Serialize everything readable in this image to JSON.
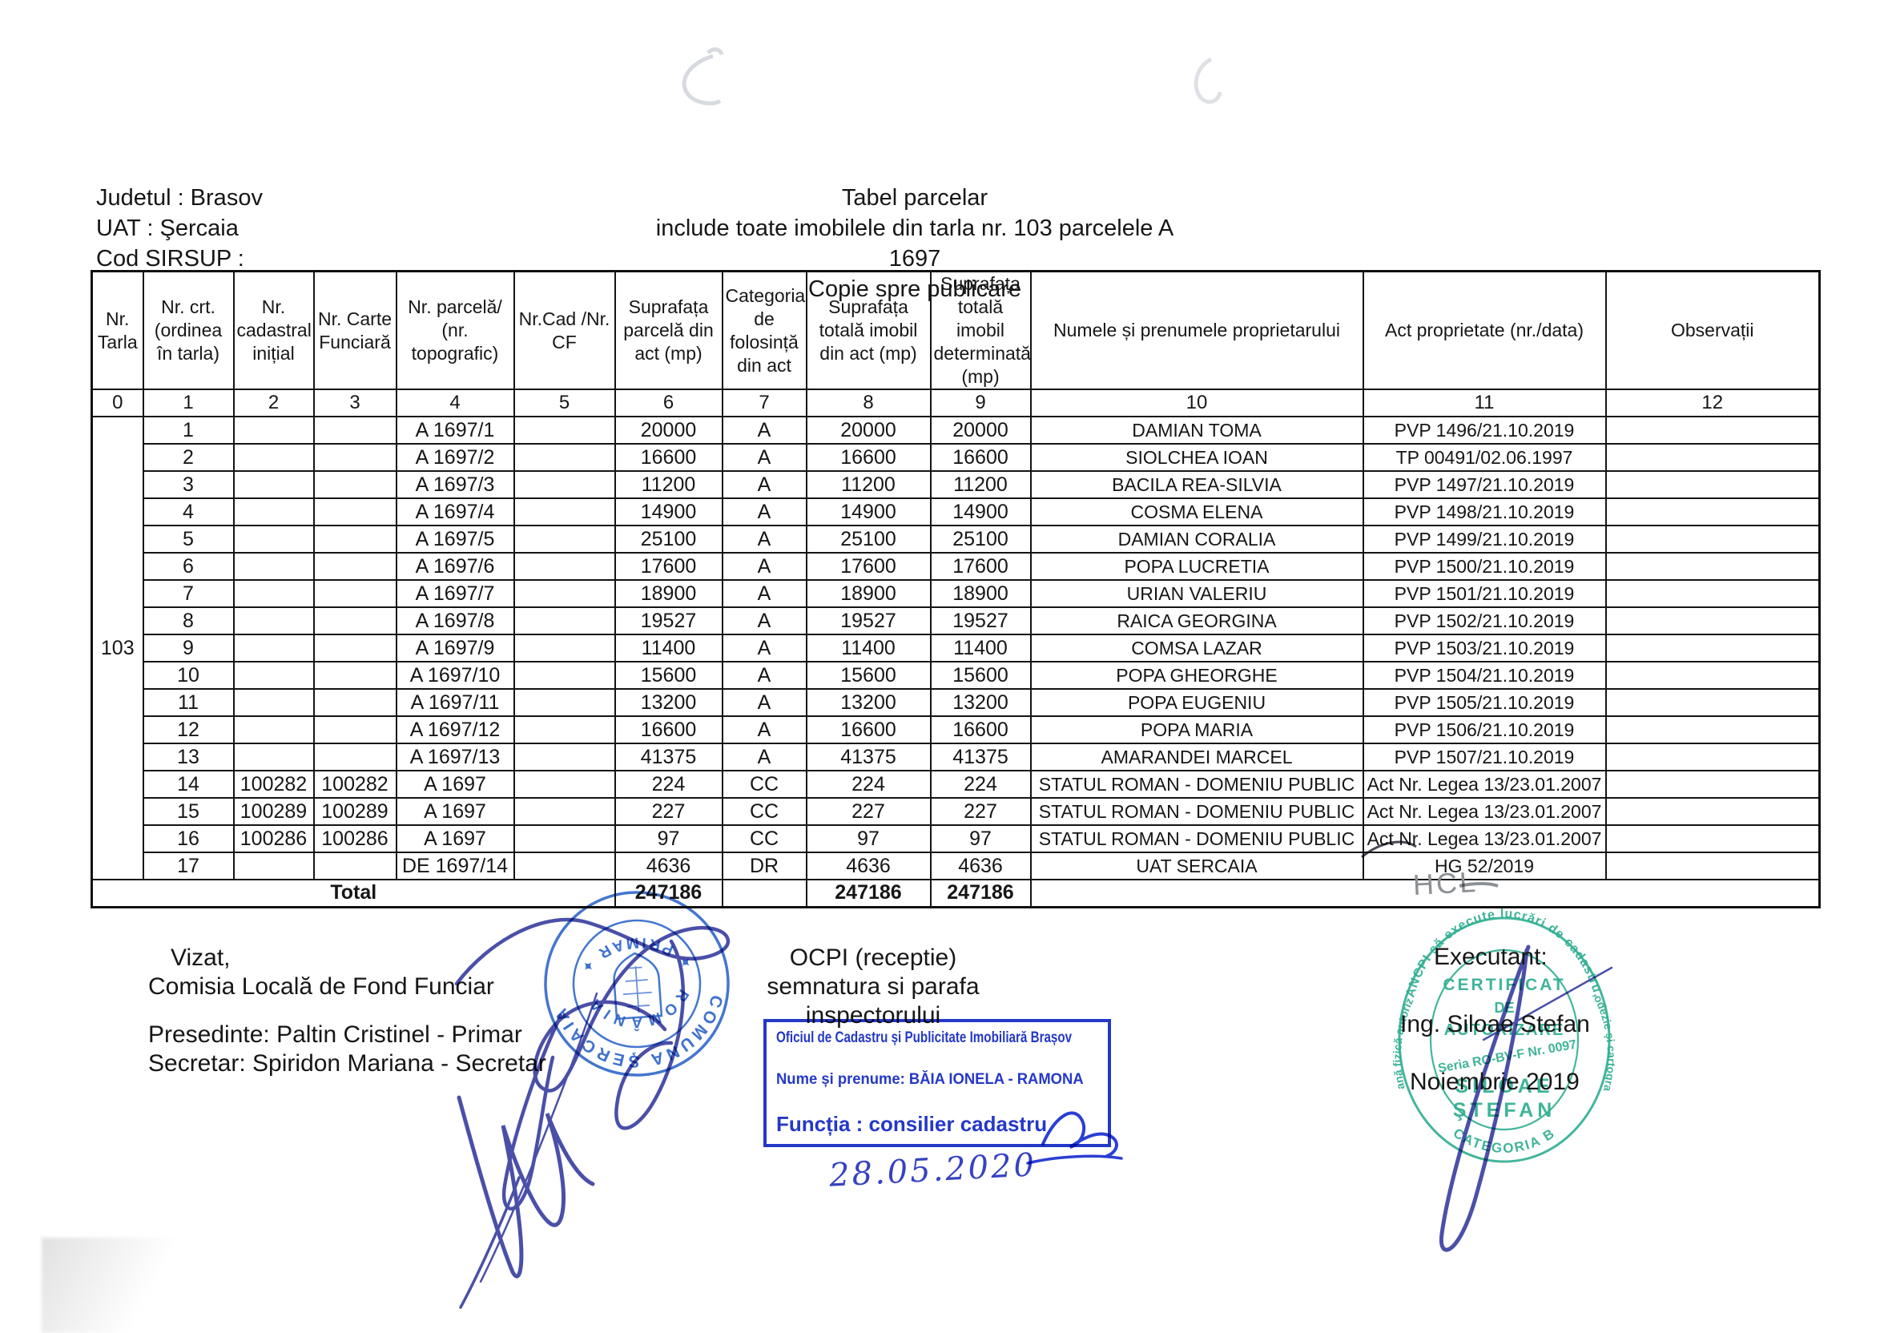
{
  "colors": {
    "ink": "#161616",
    "stamp_blue": "#2b63c8",
    "ocpi_blue": "#2438c8",
    "pen_blue": "#4a50a8",
    "stamp_green": "#2fae90",
    "pencil_gray": "#8d9195"
  },
  "header_left": {
    "line1": "Judetul : Brasov",
    "line2": "UAT : Şercaia",
    "line3": "Cod SIRSUP :"
  },
  "header_center": {
    "title": "Tabel parcelar",
    "subtitle": "include toate imobilele din tarla nr. 103 parcelele  A 1697",
    "note": "Copie spre publicare"
  },
  "table": {
    "columns": [
      {
        "label": "Nr. Tarla",
        "index": "0"
      },
      {
        "label": "Nr. crt. (ordinea în tarla)",
        "index": "1"
      },
      {
        "label": "Nr. cadastral inițial",
        "index": "2"
      },
      {
        "label": "Nr. Carte Funciară",
        "index": "3"
      },
      {
        "label": "Nr. parcelă/ (nr. topografic)",
        "index": "4"
      },
      {
        "label": "Nr.Cad /Nr. CF",
        "index": "5"
      },
      {
        "label": "Suprafața parcelă din act (mp)",
        "index": "6"
      },
      {
        "label": "Categoria de folosință din act",
        "index": "7"
      },
      {
        "label": "Suprafața totală imobil din act (mp)",
        "index": "8"
      },
      {
        "label": "Suprafața totală imobil determinată (mp)",
        "index": "9"
      },
      {
        "label": "Numele și prenumele proprietarului",
        "index": "10"
      },
      {
        "label": "Act proprietate (nr./data)",
        "index": "11"
      },
      {
        "label": "Observații",
        "index": "12"
      }
    ],
    "tarla_value": "103",
    "rows": [
      {
        "crt": "1",
        "cad": "",
        "carte": "",
        "parcela": "A 1697/1",
        "cadcf": "",
        "s_act": "20000",
        "categ": "A",
        "s_tot_act": "20000",
        "s_tot_det": "20000",
        "nume": "DAMIAN TOMA",
        "act": "PVP 1496/21.10.2019",
        "obs": ""
      },
      {
        "crt": "2",
        "cad": "",
        "carte": "",
        "parcela": "A 1697/2",
        "cadcf": "",
        "s_act": "16600",
        "categ": "A",
        "s_tot_act": "16600",
        "s_tot_det": "16600",
        "nume": "SIOLCHEA IOAN",
        "act": "TP 00491/02.06.1997",
        "obs": ""
      },
      {
        "crt": "3",
        "cad": "",
        "carte": "",
        "parcela": "A 1697/3",
        "cadcf": "",
        "s_act": "11200",
        "categ": "A",
        "s_tot_act": "11200",
        "s_tot_det": "11200",
        "nume": "BACILA REA-SILVIA",
        "act": "PVP 1497/21.10.2019",
        "obs": ""
      },
      {
        "crt": "4",
        "cad": "",
        "carte": "",
        "parcela": "A 1697/4",
        "cadcf": "",
        "s_act": "14900",
        "categ": "A",
        "s_tot_act": "14900",
        "s_tot_det": "14900",
        "nume": "COSMA ELENA",
        "act": "PVP 1498/21.10.2019",
        "obs": ""
      },
      {
        "crt": "5",
        "cad": "",
        "carte": "",
        "parcela": "A 1697/5",
        "cadcf": "",
        "s_act": "25100",
        "categ": "A",
        "s_tot_act": "25100",
        "s_tot_det": "25100",
        "nume": "DAMIAN CORALIA",
        "act": "PVP 1499/21.10.2019",
        "obs": ""
      },
      {
        "crt": "6",
        "cad": "",
        "carte": "",
        "parcela": "A 1697/6",
        "cadcf": "",
        "s_act": "17600",
        "categ": "A",
        "s_tot_act": "17600",
        "s_tot_det": "17600",
        "nume": "POPA LUCRETIA",
        "act": "PVP 1500/21.10.2019",
        "obs": ""
      },
      {
        "crt": "7",
        "cad": "",
        "carte": "",
        "parcela": "A 1697/7",
        "cadcf": "",
        "s_act": "18900",
        "categ": "A",
        "s_tot_act": "18900",
        "s_tot_det": "18900",
        "nume": "URIAN VALERIU",
        "act": "PVP 1501/21.10.2019",
        "obs": ""
      },
      {
        "crt": "8",
        "cad": "",
        "carte": "",
        "parcela": "A 1697/8",
        "cadcf": "",
        "s_act": "19527",
        "categ": "A",
        "s_tot_act": "19527",
        "s_tot_det": "19527",
        "nume": "RAICA GEORGINA",
        "act": "PVP 1502/21.10.2019",
        "obs": ""
      },
      {
        "crt": "9",
        "cad": "",
        "carte": "",
        "parcela": "A 1697/9",
        "cadcf": "",
        "s_act": "11400",
        "categ": "A",
        "s_tot_act": "11400",
        "s_tot_det": "11400",
        "nume": "COMSA LAZAR",
        "act": "PVP 1503/21.10.2019",
        "obs": ""
      },
      {
        "crt": "10",
        "cad": "",
        "carte": "",
        "parcela": "A 1697/10",
        "cadcf": "",
        "s_act": "15600",
        "categ": "A",
        "s_tot_act": "15600",
        "s_tot_det": "15600",
        "nume": "POPA GHEORGHE",
        "act": "PVP 1504/21.10.2019",
        "obs": ""
      },
      {
        "crt": "11",
        "cad": "",
        "carte": "",
        "parcela": "A 1697/11",
        "cadcf": "",
        "s_act": "13200",
        "categ": "A",
        "s_tot_act": "13200",
        "s_tot_det": "13200",
        "nume": "POPA EUGENIU",
        "act": "PVP 1505/21.10.2019",
        "obs": ""
      },
      {
        "crt": "12",
        "cad": "",
        "carte": "",
        "parcela": "A 1697/12",
        "cadcf": "",
        "s_act": "16600",
        "categ": "A",
        "s_tot_act": "16600",
        "s_tot_det": "16600",
        "nume": "POPA MARIA",
        "act": "PVP 1506/21.10.2019",
        "obs": ""
      },
      {
        "crt": "13",
        "cad": "",
        "carte": "",
        "parcela": "A 1697/13",
        "cadcf": "",
        "s_act": "41375",
        "categ": "A",
        "s_tot_act": "41375",
        "s_tot_det": "41375",
        "nume": "AMARANDEI MARCEL",
        "act": "PVP 1507/21.10.2019",
        "obs": ""
      },
      {
        "crt": "14",
        "cad": "100282",
        "carte": "100282",
        "parcela": "A 1697",
        "cadcf": "",
        "s_act": "224",
        "categ": "CC",
        "s_tot_act": "224",
        "s_tot_det": "224",
        "nume": "STATUL ROMAN - DOMENIU PUBLIC",
        "act": "Act Nr. Legea 13/23.01.2007",
        "obs": ""
      },
      {
        "crt": "15",
        "cad": "100289",
        "carte": "100289",
        "parcela": "A 1697",
        "cadcf": "",
        "s_act": "227",
        "categ": "CC",
        "s_tot_act": "227",
        "s_tot_det": "227",
        "nume": "STATUL ROMAN - DOMENIU PUBLIC",
        "act": "Act Nr. Legea 13/23.01.2007",
        "obs": ""
      },
      {
        "crt": "16",
        "cad": "100286",
        "carte": "100286",
        "parcela": "A 1697",
        "cadcf": "",
        "s_act": "97",
        "categ": "CC",
        "s_tot_act": "97",
        "s_tot_det": "97",
        "nume": "STATUL ROMAN - DOMENIU PUBLIC",
        "act": "Act Nr. Legea 13/23.01.2007",
        "obs": ""
      },
      {
        "crt": "17",
        "cad": "",
        "carte": "",
        "parcela": "DE 1697/14",
        "cadcf": "",
        "s_act": "4636",
        "categ": "DR",
        "s_tot_act": "4636",
        "s_tot_det": "4636",
        "nume": "UAT SERCAIA",
        "act": "HG 52/2019",
        "obs": ""
      }
    ],
    "total": {
      "label": "Total",
      "s_act": "247186",
      "s_tot_act": "247186",
      "s_tot_det": "247186"
    },
    "handwritten_note": "HCL"
  },
  "footer": {
    "vizat": {
      "line1": "Vizat,",
      "line2": "Comisia Locală de Fond Funciar",
      "line3": "Presedinte: Paltin Cristinel - Primar",
      "line4": "Secretar: Spiridon Mariana - Secretar"
    },
    "ocpi": {
      "line1": "OCPI (receptie)",
      "line2": "semnatura si parafa inspectorului"
    },
    "ocpi_stamp": {
      "line1": "Oficiul de Cadastru și Publicitate Imobiliară Brașov",
      "line2": "Nume și prenume: BĂIA IONELA - RAMONA",
      "line3": "Funcția : consilier cadastru",
      "date": "28.05.2020"
    },
    "executant": {
      "line1": "Executant:",
      "line2": "Ing. Siloae Stefan",
      "line3": "Noiembrie 2019"
    },
    "round_stamp_blue": {
      "ring_top": "COMUNA ŞERCAIA",
      "ring_bottom": "✦ PRIMAR ✦",
      "inner": "ROMÂNIA"
    },
    "round_stamp_green": {
      "ring_top": "ANCPI să execute lucrări de cadastru,",
      "ring_left": "Persoană fizică autorizată de",
      "ring_right": "geodezie și cartografie",
      "ring_bottom": "CATEGORIA B",
      "cert1": "CERTIFICAT",
      "cert2": "DE",
      "cert3": "AUTORIZARE",
      "seria": "Seria RO-BV-F Nr. 0097",
      "name1": "SILOAE",
      "name2": "ŞTEFAN"
    }
  }
}
